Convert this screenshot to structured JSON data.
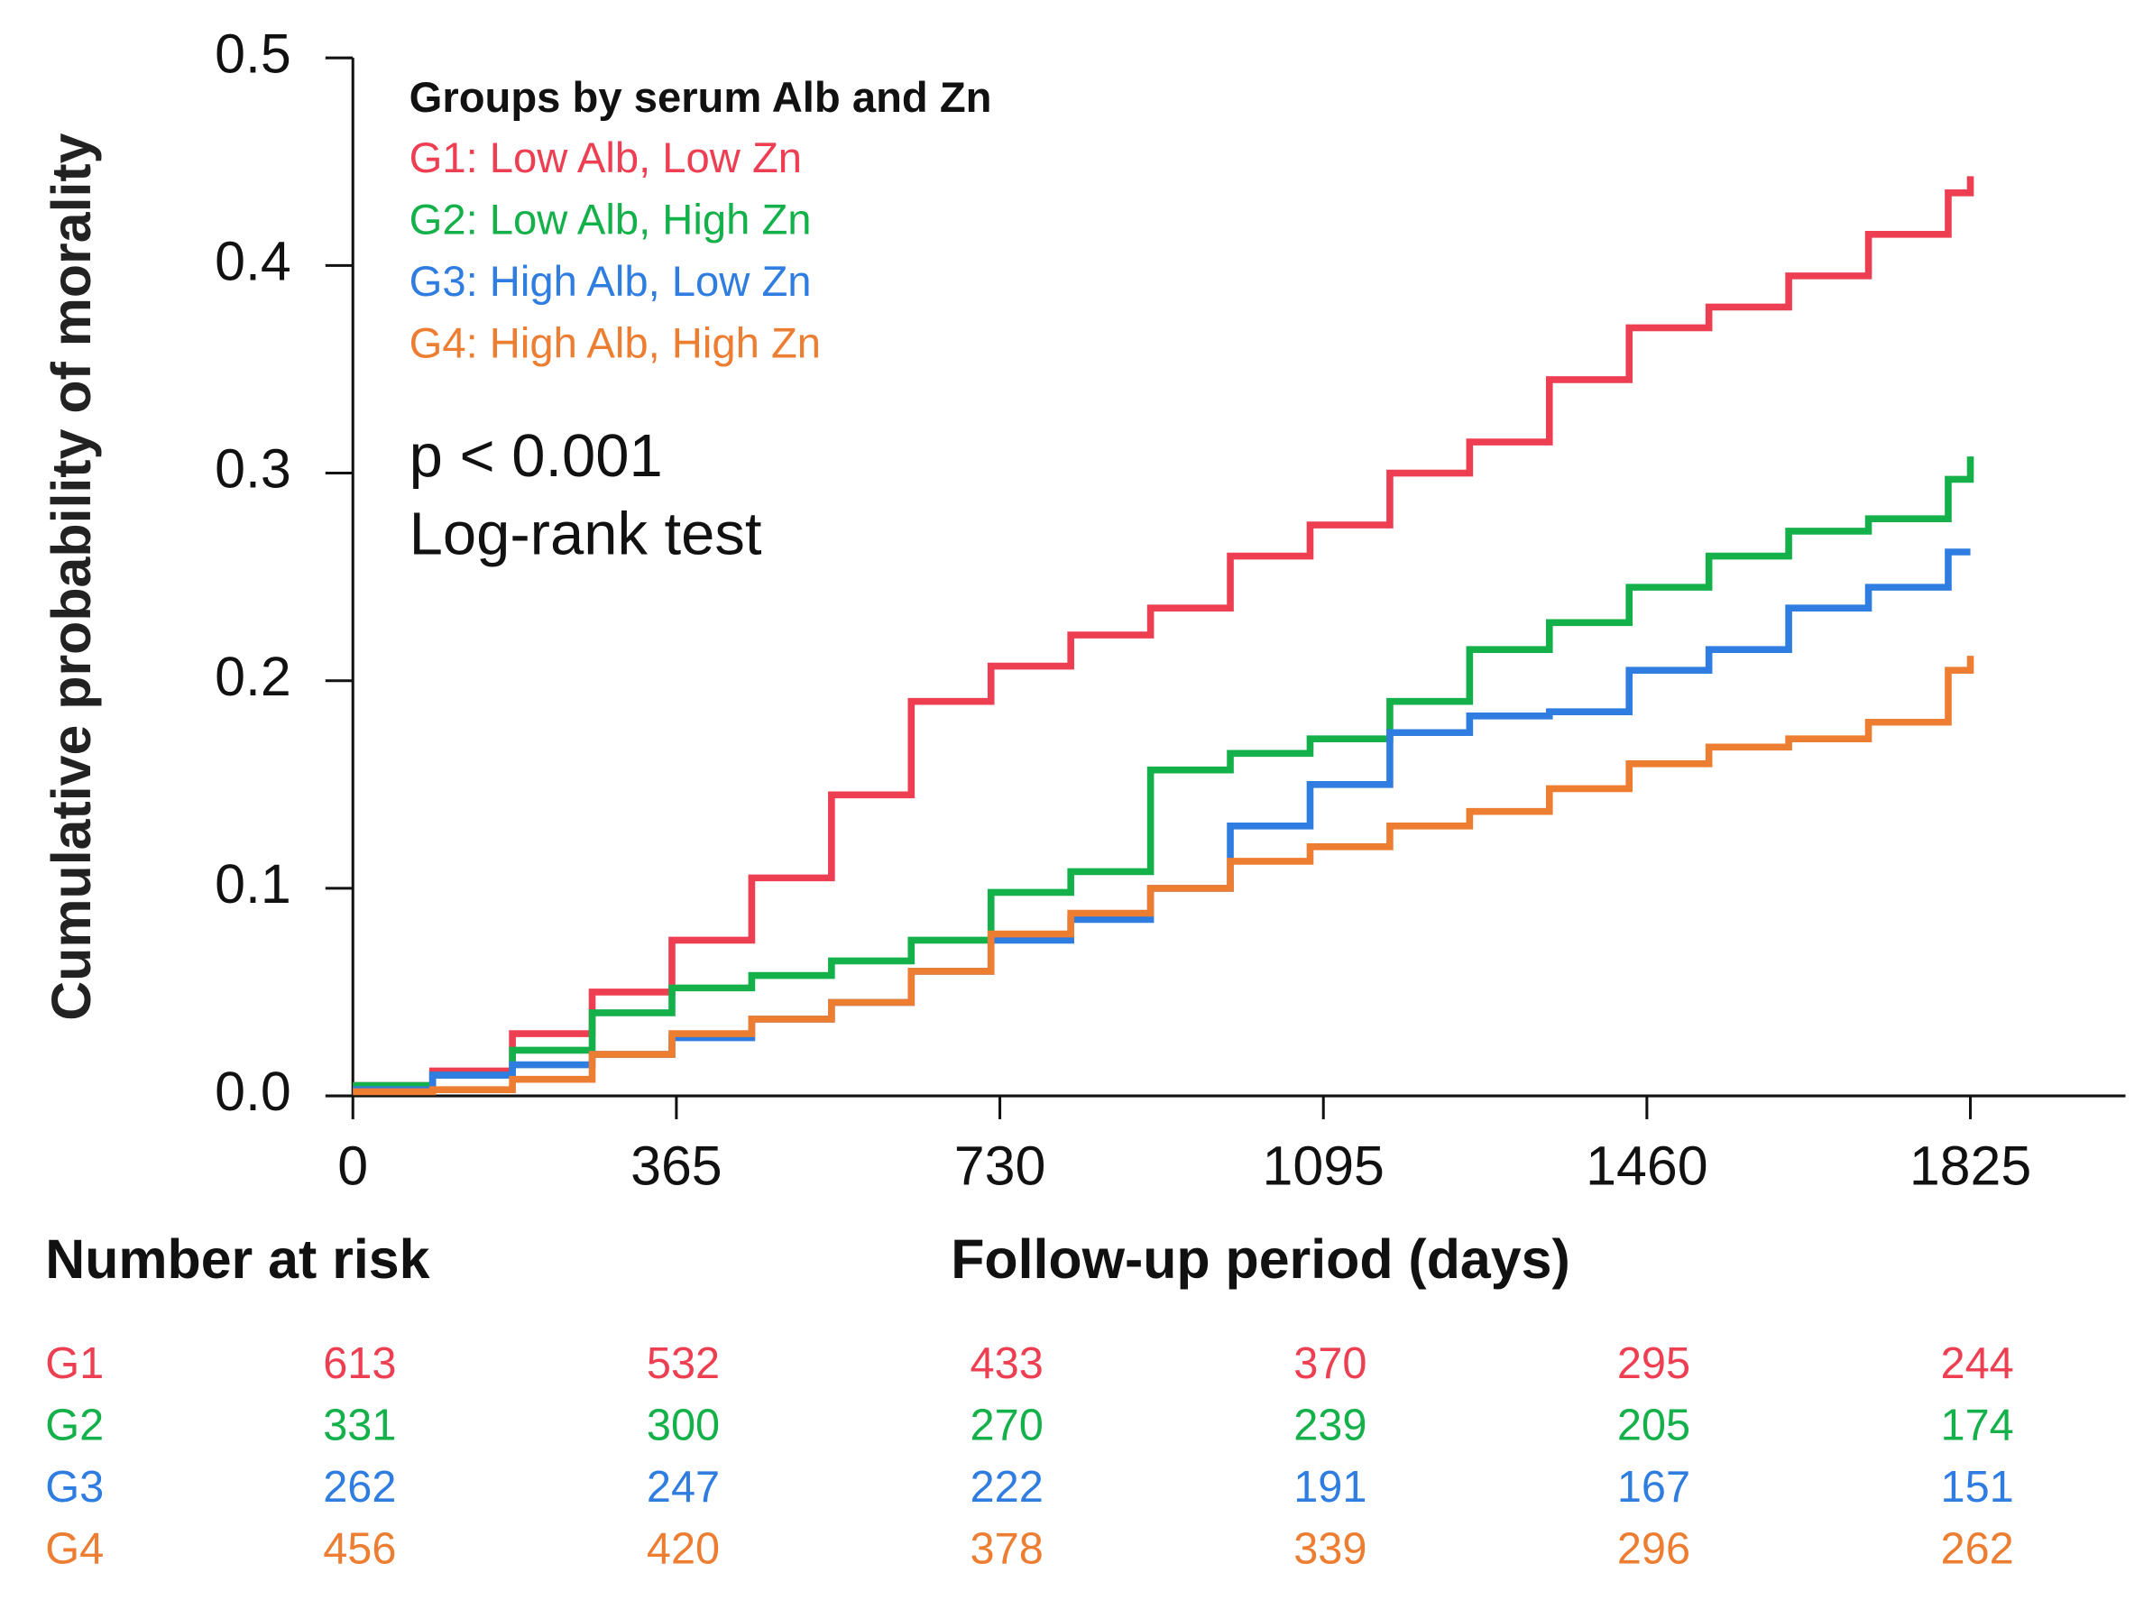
{
  "chart_data": {
    "type": "step",
    "ylabel": "Cumulative probability of morality",
    "xlabel": "Follow-up period (days)",
    "legend_title": "Groups by serum Alb and Zn",
    "annotations": [
      "p < 0.001",
      "Log-rank test"
    ],
    "xlim": [
      0,
      2000
    ],
    "ylim": [
      0,
      0.5
    ],
    "xticks": [
      0,
      365,
      730,
      1095,
      1460,
      1825
    ],
    "yticks": [
      {
        "value": 0,
        "label": "0.0"
      },
      0.1,
      0.2,
      0.3,
      0.4,
      0.5
    ],
    "legend": "upper left",
    "x": [
      0,
      90,
      180,
      270,
      360,
      450,
      540,
      630,
      720,
      810,
      900,
      990,
      1080,
      1170,
      1260,
      1350,
      1440,
      1530,
      1620,
      1710,
      1800,
      1825
    ],
    "series": [
      {
        "name": "G1: Low Alb, Low Zn",
        "color": "#ee3e52",
        "values": [
          0.005,
          0.012,
          0.03,
          0.05,
          0.075,
          0.105,
          0.145,
          0.19,
          0.207,
          0.222,
          0.235,
          0.26,
          0.275,
          0.3,
          0.315,
          0.345,
          0.37,
          0.38,
          0.395,
          0.415,
          0.435,
          0.443
        ]
      },
      {
        "name": "G2: Low Alb, High Zn",
        "color": "#14b04a",
        "values": [
          0.005,
          0.01,
          0.022,
          0.04,
          0.052,
          0.058,
          0.065,
          0.075,
          0.098,
          0.108,
          0.157,
          0.165,
          0.172,
          0.19,
          0.215,
          0.228,
          0.245,
          0.26,
          0.272,
          0.278,
          0.297,
          0.308
        ]
      },
      {
        "name": "G3: High Alb, Low Zn",
        "color": "#2f7de1",
        "values": [
          0.003,
          0.01,
          0.015,
          0.02,
          0.028,
          0.037,
          0.045,
          0.06,
          0.075,
          0.085,
          0.1,
          0.13,
          0.15,
          0.175,
          0.183,
          0.185,
          0.205,
          0.215,
          0.235,
          0.245,
          0.262,
          0.262
        ]
      },
      {
        "name": "G4: High Alb, High Zn",
        "color": "#ed7d31",
        "values": [
          0.002,
          0.003,
          0.008,
          0.02,
          0.03,
          0.037,
          0.045,
          0.06,
          0.078,
          0.088,
          0.1,
          0.113,
          0.12,
          0.13,
          0.137,
          0.148,
          0.16,
          0.168,
          0.172,
          0.18,
          0.205,
          0.212
        ]
      }
    ],
    "risk_table": {
      "title": "Number at risk",
      "rows": [
        {
          "label": "G1",
          "values": [
            613,
            532,
            433,
            370,
            295,
            244
          ]
        },
        {
          "label": "G2",
          "values": [
            331,
            300,
            270,
            239,
            205,
            174
          ]
        },
        {
          "label": "G3",
          "values": [
            262,
            247,
            222,
            191,
            167,
            151
          ]
        },
        {
          "label": "G4",
          "values": [
            456,
            420,
            378,
            339,
            296,
            262
          ]
        }
      ]
    }
  }
}
